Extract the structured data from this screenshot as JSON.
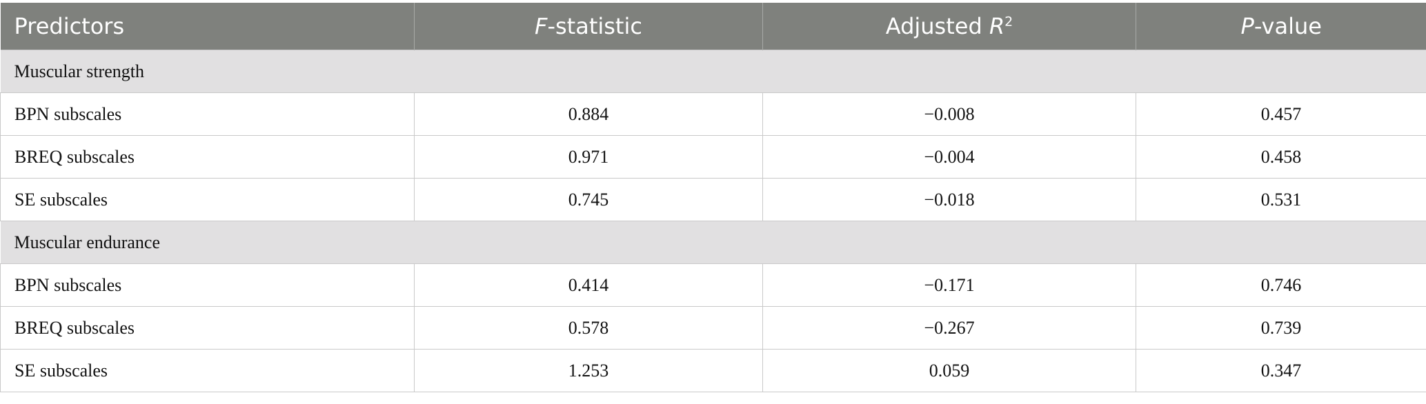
{
  "table": {
    "headers": {
      "predictors": "Predictors",
      "f_stat_italic": "F",
      "f_stat_rest": "-statistic",
      "adj_r2_text": "Adjusted ",
      "adj_r2_italic": "R",
      "adj_r2_sup": "2",
      "p_value_italic": "P",
      "p_value_rest": "-value"
    },
    "sections": [
      {
        "title": "Muscular strength",
        "rows": [
          {
            "predictor": "BPN subscales",
            "f_statistic": "0.884",
            "adjusted_r2": "−0.008",
            "p_value": "0.457"
          },
          {
            "predictor": "BREQ subscales",
            "f_statistic": "0.971",
            "adjusted_r2": "−0.004",
            "p_value": "0.458"
          },
          {
            "predictor": "SE subscales",
            "f_statistic": "0.745",
            "adjusted_r2": "−0.018",
            "p_value": "0.531"
          }
        ]
      },
      {
        "title": "Muscular endurance",
        "rows": [
          {
            "predictor": "BPN subscales",
            "f_statistic": "0.414",
            "adjusted_r2": "−0.171",
            "p_value": "0.746"
          },
          {
            "predictor": "BREQ subscales",
            "f_statistic": "0.578",
            "adjusted_r2": "−0.267",
            "p_value": "0.739"
          },
          {
            "predictor": "SE subscales",
            "f_statistic": "1.253",
            "adjusted_r2": "0.059",
            "p_value": "0.347"
          }
        ]
      }
    ]
  }
}
